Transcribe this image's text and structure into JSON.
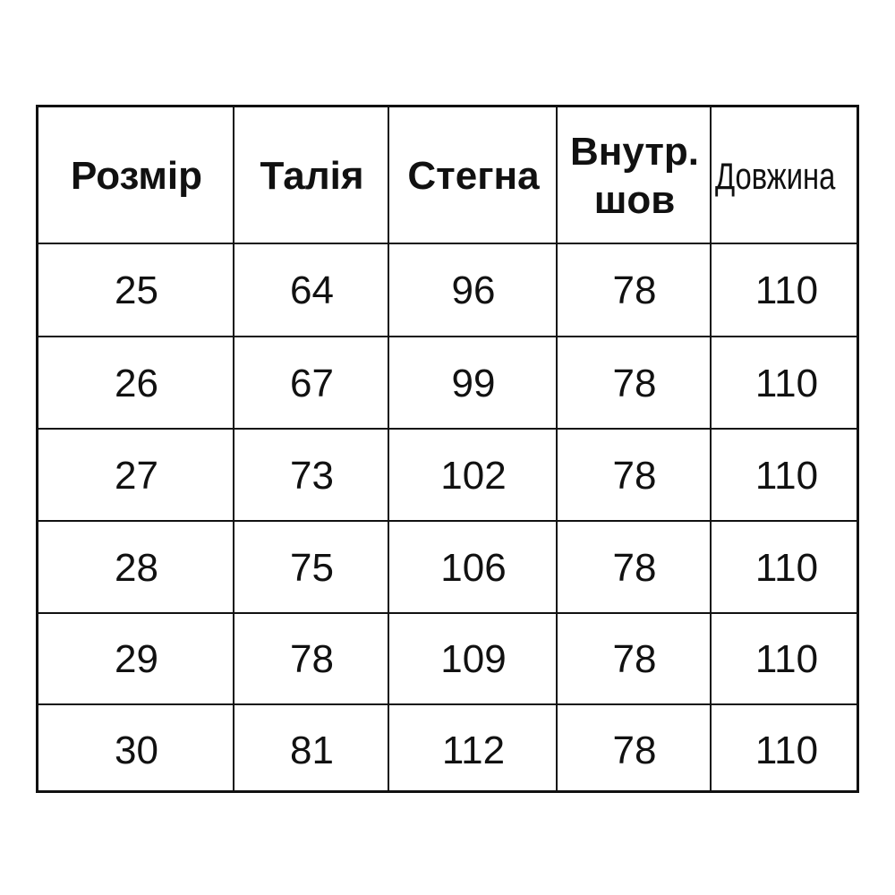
{
  "headers": [
    "Розмір",
    "Талія",
    "Стегна",
    "Внутр. шов",
    "Довжина"
  ],
  "rows": [
    [
      "25",
      "64",
      "96",
      "78",
      "110"
    ],
    [
      "26",
      "67",
      "99",
      "78",
      "110"
    ],
    [
      "27",
      "73",
      "102",
      "78",
      "110"
    ],
    [
      "28",
      "75",
      "106",
      "78",
      "110"
    ],
    [
      "29",
      "78",
      "109",
      "78",
      "110"
    ],
    [
      "30",
      "81",
      "112",
      "78",
      "110"
    ]
  ]
}
